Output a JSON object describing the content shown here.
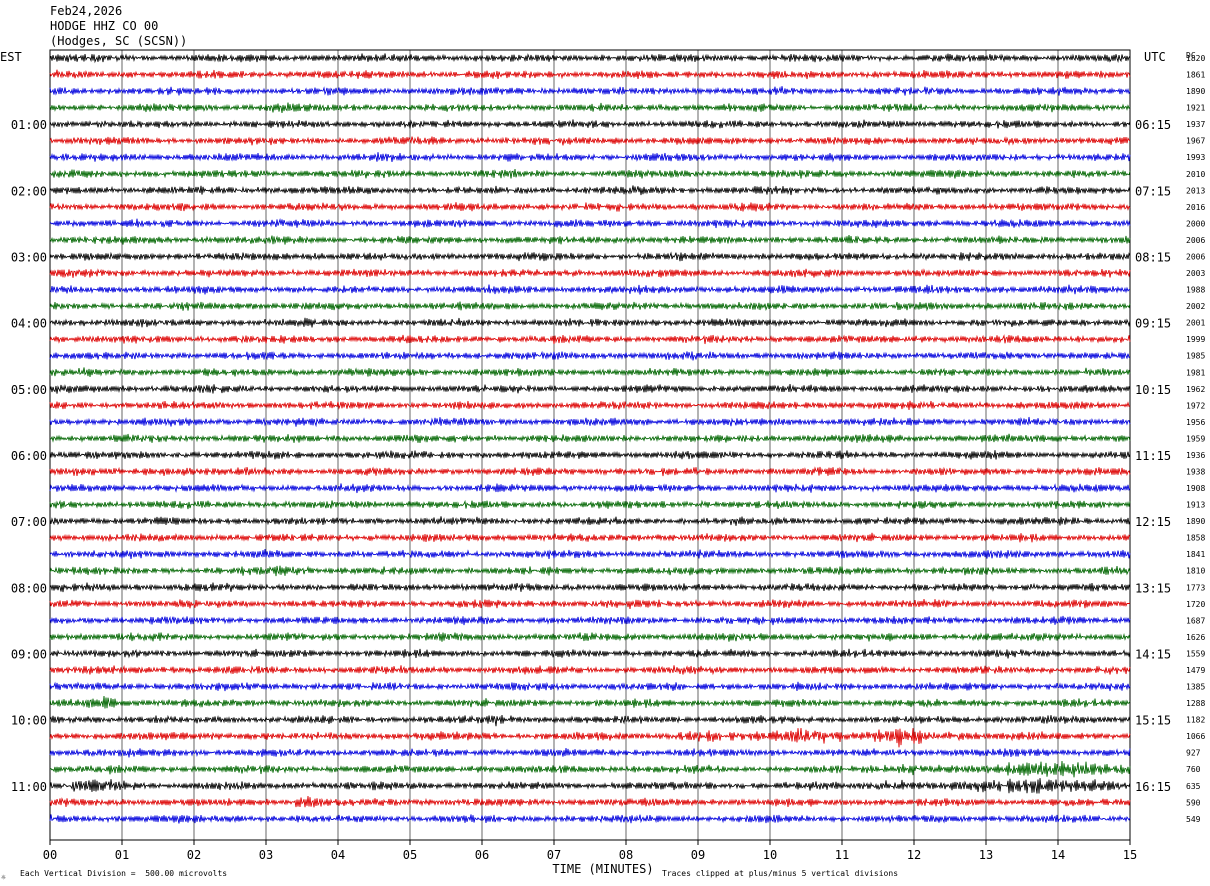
{
  "header": {
    "date": "Feb24,2026",
    "station": "HODGE HHZ CO 00",
    "location": "(Hodges, SC (SCSN))"
  },
  "left_axis_label": "EST",
  "right_axis_label": "UTC",
  "dc_label": "DC",
  "x_axis_title": "TIME (MINUTES)",
  "footer": {
    "division_note": "Each Vertical Division =  500.00 microvolts",
    "clip_note": "Traces clipped at plus/minus 5 vertical divisions",
    "corner_mark": "☼"
  },
  "colors": {
    "trace_cycle": [
      "#000000",
      "#dd0000",
      "#0000dd",
      "#006600"
    ],
    "grid": "#000000",
    "background": "#ffffff"
  },
  "chart_data": {
    "type": "line",
    "description_type": "helicorder",
    "x_ticks": [
      "00",
      "01",
      "02",
      "03",
      "04",
      "05",
      "06",
      "07",
      "08",
      "09",
      "10",
      "11",
      "12",
      "13",
      "14",
      "15"
    ],
    "xlim": [
      0,
      15
    ],
    "xlabel": "TIME (MINUTES)",
    "left_hour_labels": [
      "01:00",
      "02:00",
      "03:00",
      "04:00",
      "05:00",
      "06:00",
      "07:00",
      "08:00",
      "09:00",
      "10:00",
      "11:00"
    ],
    "right_hour_labels": [
      "06:15",
      "07:15",
      "08:15",
      "09:15",
      "10:15",
      "11:15",
      "12:15",
      "13:15",
      "14:15",
      "15:15",
      "16:15"
    ],
    "dc_values": [
      "1820",
      "1861",
      "1890",
      "1921",
      "1937",
      "1967",
      "1993",
      "2010",
      "2013",
      "2016",
      "2000",
      "2006",
      "2006",
      "2003",
      "1988",
      "2002",
      "2001",
      "1999",
      "1985",
      "1981",
      "1962",
      "1972",
      "1956",
      "1959",
      "1936",
      "1938",
      "1908",
      "1913",
      "1890",
      "1858",
      "1841",
      "1810",
      "1773",
      "1720",
      "1687",
      "1626",
      "1559",
      "1479",
      "1385",
      "1288",
      "1182",
      "1066",
      "927",
      "760",
      "635",
      "590",
      "549"
    ],
    "trace_count": 47,
    "traces_per_hour": 4,
    "amplitude_units": "vertical divisions",
    "events": [
      {
        "trace": 3,
        "start_min": 2.9,
        "end_min": 3.6,
        "amp": 1.5
      },
      {
        "trace": 25,
        "start_min": 0.5,
        "end_min": 3.2,
        "amp": 1.2
      },
      {
        "trace": 26,
        "start_min": 5.9,
        "end_min": 6.6,
        "amp": 1.4
      },
      {
        "trace": 31,
        "start_min": 2.7,
        "end_min": 3.7,
        "amp": 1.6
      },
      {
        "trace": 39,
        "start_min": 0.4,
        "end_min": 1.0,
        "amp": 2.2
      },
      {
        "trace": 40,
        "start_min": 5.7,
        "end_min": 6.6,
        "amp": 1.6
      },
      {
        "trace": 41,
        "start_min": 8.6,
        "end_min": 9.8,
        "amp": 1.8
      },
      {
        "trace": 41,
        "start_min": 9.8,
        "end_min": 11.0,
        "amp": 2.6
      },
      {
        "trace": 41,
        "start_min": 11.4,
        "end_min": 12.3,
        "amp": 3.0
      },
      {
        "trace": 41,
        "start_min": 12.3,
        "end_min": 13.0,
        "amp": 1.6
      },
      {
        "trace": 43,
        "start_min": 11.0,
        "end_min": 13.0,
        "amp": 1.4
      },
      {
        "trace": 43,
        "start_min": 13.0,
        "end_min": 15.0,
        "amp": 2.6
      },
      {
        "trace": 44,
        "start_min": 0.1,
        "end_min": 1.2,
        "amp": 2.4
      },
      {
        "trace": 44,
        "start_min": 11.0,
        "end_min": 12.5,
        "amp": 1.5
      },
      {
        "trace": 44,
        "start_min": 12.5,
        "end_min": 15.0,
        "amp": 2.4
      },
      {
        "trace": 45,
        "start_min": 3.4,
        "end_min": 3.8,
        "amp": 2.4
      }
    ]
  }
}
